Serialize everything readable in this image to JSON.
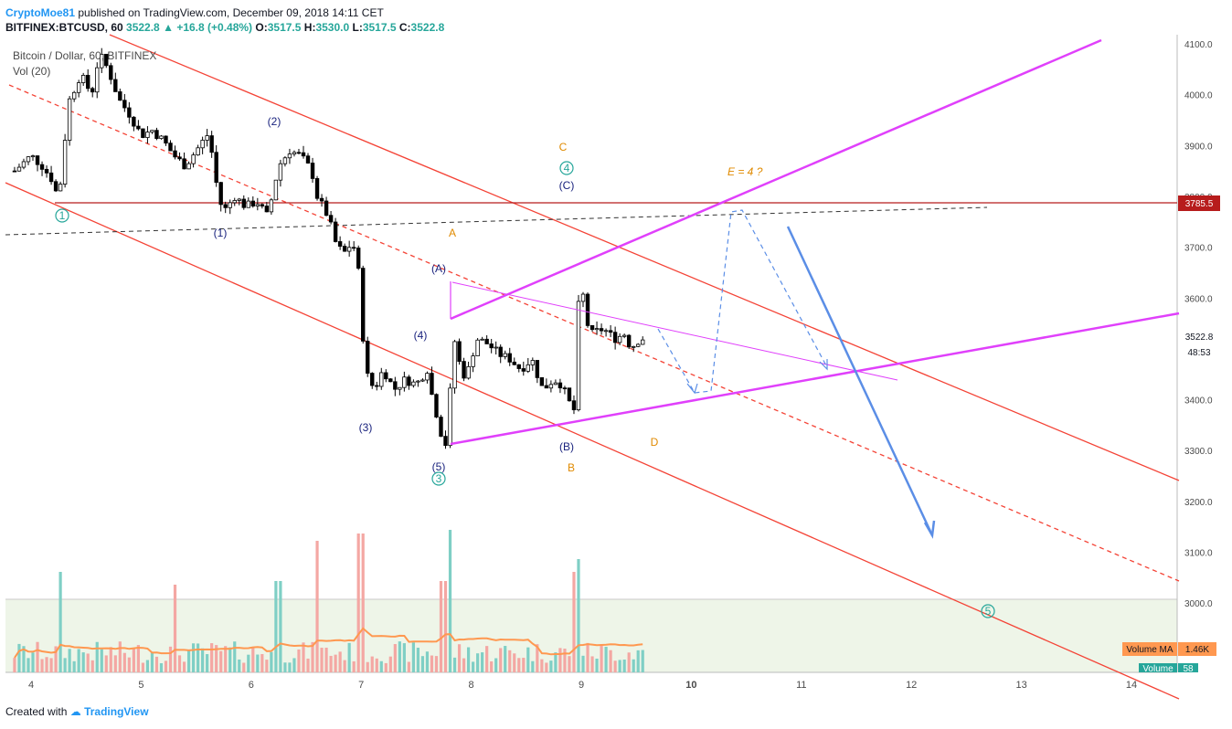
{
  "header": {
    "author": "CryptoMoe81",
    "published_text": "published on TradingView.com, December 09, 2018 14:11 CET"
  },
  "ohlc": {
    "symbol": "BITFINEX:BTCUSD, 60",
    "last": "3522.8",
    "change": "+16.8 (+0.48%)",
    "open_label": "O:",
    "open": "3517.5",
    "high_label": "H:",
    "high": "3530.0",
    "low_label": "L:",
    "low": "3517.5",
    "close_label": "C:",
    "close": "3522.8"
  },
  "legend": {
    "series_title": "Bitcoin / Dollar, 60, BITFINEX",
    "volume_title": "Vol (20)"
  },
  "axis": {
    "y_ticks": [
      "4100.0",
      "4000.0",
      "3900.0",
      "3800.0",
      "3700.0",
      "3600.0",
      "3400.0",
      "3300.0",
      "3200.0",
      "3100.0",
      "3000.0"
    ],
    "x_ticks": [
      "4",
      "5",
      "6",
      "7",
      "8",
      "9",
      "10",
      "11",
      "12",
      "13",
      "14"
    ],
    "price_label": "3785.5",
    "last_price_label": "3522.8",
    "countdown_label": "48:53",
    "volume_ma_label": "Volume MA",
    "volume_ma_value": "1.46K",
    "volume_label": "Volume",
    "volume_value": "58"
  },
  "annotations": {
    "w1": "1",
    "w3": "3",
    "w4": "4",
    "w5": "5",
    "i1": "(1)",
    "i2": "(2)",
    "i3": "(3)",
    "i4": "(4)",
    "i5": "(5)",
    "ia": "(A)",
    "ib": "(B)",
    "ic": "(C)",
    "a": "A",
    "b": "B",
    "c": "C",
    "d": "D",
    "e": "E = 4 ?"
  },
  "footer": {
    "created_with": "Created with",
    "brand": "TradingView"
  },
  "colors": {
    "up": "#ffffff",
    "down": "#000000",
    "vol_up": "#7fcfc5",
    "vol_down": "#f4a7a3",
    "vol_ma": "#ff9850",
    "channel": "#f44336",
    "triangle": "#e040fb",
    "resistance": "#b71c1c",
    "arrow": "#5b8ee6"
  },
  "chart_data": {
    "type": "candlestick",
    "title": "Bitcoin / Dollar, 60, BITFINEX",
    "ylim": [
      2960,
      4110
    ],
    "xlim": [
      3.85,
      14.5
    ],
    "y_ticks": [
      4100,
      4000,
      3900,
      3800,
      3700,
      3600,
      3400,
      3300,
      3200,
      3100,
      3000
    ],
    "x_ticks": [
      4,
      5,
      6,
      7,
      8,
      9,
      10,
      11,
      12,
      13,
      14
    ],
    "horizontal_line": 3785.5,
    "last_price": 3522.8,
    "price_path": [
      [
        3.85,
        3850
      ],
      [
        4.0,
        3880
      ],
      [
        4.1,
        3860
      ],
      [
        4.2,
        3830
      ],
      [
        4.25,
        3790
      ],
      [
        4.3,
        3900
      ],
      [
        4.35,
        3990
      ],
      [
        4.45,
        4040
      ],
      [
        4.55,
        4000
      ],
      [
        4.62,
        4080
      ],
      [
        4.7,
        4050
      ],
      [
        4.8,
        3990
      ],
      [
        4.9,
        3960
      ],
      [
        5.0,
        3920
      ],
      [
        5.1,
        3930
      ],
      [
        5.2,
        3910
      ],
      [
        5.3,
        3880
      ],
      [
        5.4,
        3860
      ],
      [
        5.5,
        3890
      ],
      [
        5.6,
        3920
      ],
      [
        5.65,
        3880
      ],
      [
        5.7,
        3800
      ],
      [
        5.75,
        3770
      ],
      [
        5.85,
        3800
      ],
      [
        5.95,
        3780
      ],
      [
        6.05,
        3790
      ],
      [
        6.15,
        3760
      ],
      [
        6.25,
        3860
      ],
      [
        6.35,
        3890
      ],
      [
        6.45,
        3880
      ],
      [
        6.55,
        3850
      ],
      [
        6.6,
        3800
      ],
      [
        6.7,
        3760
      ],
      [
        6.78,
        3700
      ],
      [
        6.85,
        3690
      ],
      [
        6.92,
        3710
      ],
      [
        6.97,
        3670
      ],
      [
        7.0,
        3560
      ],
      [
        7.05,
        3450
      ],
      [
        7.12,
        3420
      ],
      [
        7.2,
        3460
      ],
      [
        7.3,
        3420
      ],
      [
        7.4,
        3440
      ],
      [
        7.5,
        3430
      ],
      [
        7.6,
        3460
      ],
      [
        7.65,
        3400
      ],
      [
        7.7,
        3360
      ],
      [
        7.75,
        3310
      ],
      [
        7.8,
        3320
      ],
      [
        7.82,
        3550
      ],
      [
        7.88,
        3480
      ],
      [
        7.95,
        3440
      ],
      [
        8.05,
        3520
      ],
      [
        8.15,
        3510
      ],
      [
        8.25,
        3490
      ],
      [
        8.35,
        3480
      ],
      [
        8.45,
        3460
      ],
      [
        8.55,
        3480
      ],
      [
        8.65,
        3420
      ],
      [
        8.75,
        3440
      ],
      [
        8.82,
        3430
      ],
      [
        8.9,
        3390
      ],
      [
        8.93,
        3360
      ],
      [
        8.96,
        3540
      ],
      [
        9.0,
        3660
      ],
      [
        9.03,
        3560
      ],
      [
        9.1,
        3530
      ],
      [
        9.2,
        3540
      ],
      [
        9.3,
        3520
      ],
      [
        9.4,
        3530
      ],
      [
        9.45,
        3500
      ],
      [
        9.5,
        3515
      ],
      [
        9.58,
        3522.8
      ]
    ],
    "volume_spikes": [
      [
        4.28,
        0.55
      ],
      [
        5.32,
        0.48
      ],
      [
        6.25,
        0.5
      ],
      [
        6.6,
        0.72
      ],
      [
        7.0,
        0.76
      ],
      [
        7.75,
        0.5
      ],
      [
        7.82,
        0.78
      ],
      [
        8.93,
        0.55
      ],
      [
        8.96,
        0.62
      ]
    ]
  }
}
